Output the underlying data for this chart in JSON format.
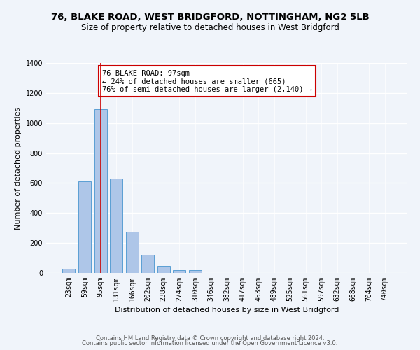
{
  "title": "76, BLAKE ROAD, WEST BRIDGFORD, NOTTINGHAM, NG2 5LB",
  "subtitle": "Size of property relative to detached houses in West Bridgford",
  "xlabel": "Distribution of detached houses by size in West Bridgford",
  "ylabel": "Number of detached properties",
  "bar_labels": [
    "23sqm",
    "59sqm",
    "95sqm",
    "131sqm",
    "166sqm",
    "202sqm",
    "238sqm",
    "274sqm",
    "310sqm",
    "346sqm",
    "382sqm",
    "417sqm",
    "453sqm",
    "489sqm",
    "525sqm",
    "561sqm",
    "597sqm",
    "632sqm",
    "668sqm",
    "704sqm",
    "740sqm"
  ],
  "bar_values": [
    30,
    610,
    1090,
    630,
    275,
    120,
    45,
    20,
    18,
    0,
    0,
    0,
    0,
    0,
    0,
    0,
    0,
    0,
    0,
    0,
    0
  ],
  "bar_color": "#aec6e8",
  "bar_edge_color": "#5a9fd4",
  "ylim": [
    0,
    1400
  ],
  "yticks": [
    0,
    200,
    400,
    600,
    800,
    1000,
    1200,
    1400
  ],
  "vline_x": 2,
  "vline_color": "#cc0000",
  "annotation_text": "76 BLAKE ROAD: 97sqm\n← 24% of detached houses are smaller (665)\n76% of semi-detached houses are larger (2,140) →",
  "annotation_box_color": "#ffffff",
  "annotation_box_edge": "#cc0000",
  "footer_line1": "Contains HM Land Registry data © Crown copyright and database right 2024.",
  "footer_line2": "Contains public sector information licensed under the Open Government Licence v3.0.",
  "bg_color": "#f0f4fa",
  "grid_color": "#ffffff",
  "title_fontsize": 9.5,
  "subtitle_fontsize": 8.5,
  "label_fontsize": 8,
  "tick_fontsize": 7,
  "footer_fontsize": 6,
  "annotation_fontsize": 7.5
}
